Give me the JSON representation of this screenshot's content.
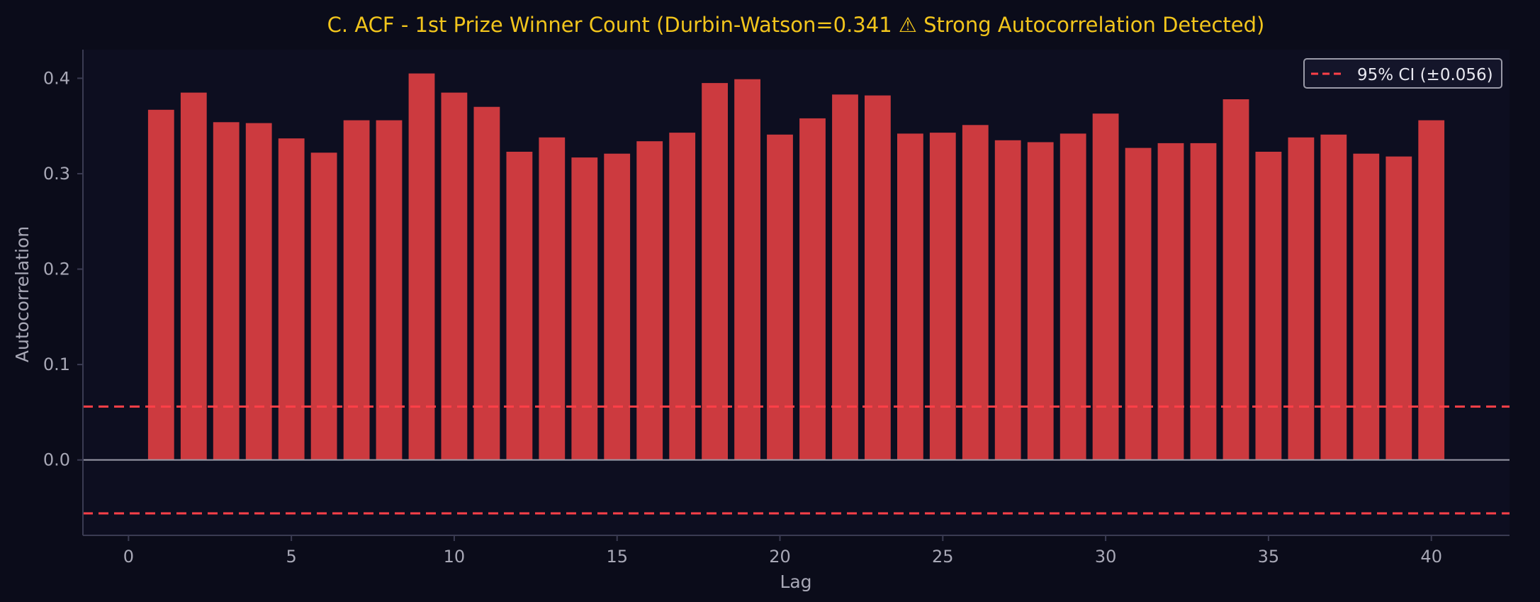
{
  "chart_data": {
    "type": "bar",
    "title": "C. ACF - 1st Prize Winner Count (Durbin-Watson=0.341 ⚠  Strong Autocorrelation Detected)",
    "xlabel": "Lag",
    "ylabel": "Autocorrelation",
    "xlim": [
      -1.4,
      42.4
    ],
    "ylim": [
      -0.079,
      0.43
    ],
    "xticks": [
      "0",
      "5",
      "10",
      "15",
      "20",
      "25",
      "30",
      "35",
      "40"
    ],
    "yticks": [
      "0.0",
      "0.1",
      "0.2",
      "0.3",
      "0.4"
    ],
    "grid": false,
    "legend": {
      "position": "top-right",
      "label": "95% CI (±0.056)"
    },
    "ci": 0.056,
    "lags": [
      1,
      2,
      3,
      4,
      5,
      6,
      7,
      8,
      9,
      10,
      11,
      12,
      13,
      14,
      15,
      16,
      17,
      18,
      19,
      20,
      21,
      22,
      23,
      24,
      25,
      26,
      27,
      28,
      29,
      30,
      31,
      32,
      33,
      34,
      35,
      36,
      37,
      38,
      39,
      40
    ],
    "values": [
      0.367,
      0.385,
      0.354,
      0.353,
      0.337,
      0.322,
      0.356,
      0.356,
      0.405,
      0.385,
      0.37,
      0.323,
      0.338,
      0.317,
      0.321,
      0.334,
      0.343,
      0.395,
      0.399,
      0.341,
      0.358,
      0.383,
      0.382,
      0.342,
      0.343,
      0.351,
      0.335,
      0.333,
      0.342,
      0.363,
      0.327,
      0.332,
      0.332,
      0.378,
      0.323,
      0.338,
      0.341,
      0.321,
      0.318,
      0.356
    ],
    "colors": {
      "background": "#0b0c1a",
      "plot_background": "#0d0e20",
      "bar": "#cc3a3f",
      "ci_line": "#ff4048",
      "zero_line": "#9a9aa8",
      "title": "#f2c51c",
      "text": "#a8a8b6",
      "axis": "#3a3b52"
    }
  }
}
